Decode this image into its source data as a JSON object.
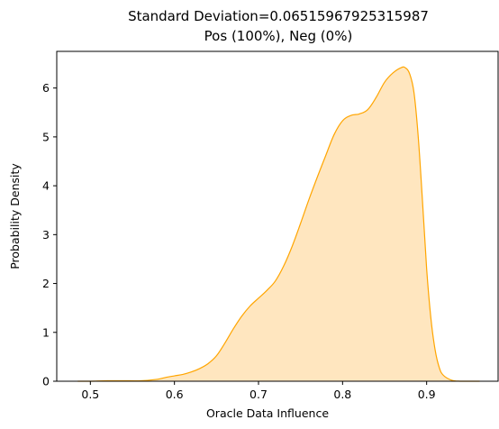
{
  "chart_data": {
    "type": "area",
    "title_line1": "Standard Deviation=0.06515967925315987",
    "title_line2": "Pos (100%), Neg (0%)",
    "xlabel": "Oracle Data Influence",
    "ylabel": "Probability Density",
    "xlim": [
      0.46,
      0.985
    ],
    "ylim": [
      0,
      6.75
    ],
    "xticks": [
      0.5,
      0.6,
      0.7,
      0.8,
      0.9
    ],
    "xtick_labels": [
      "0.5",
      "0.6",
      "0.7",
      "0.8",
      "0.9"
    ],
    "yticks": [
      0,
      1,
      2,
      3,
      4,
      5,
      6
    ],
    "ytick_labels": [
      "0",
      "1",
      "2",
      "3",
      "4",
      "5",
      "6"
    ],
    "grid": false,
    "line_color": "#ffa500",
    "fill_color": "#ffe6bf",
    "series": [
      {
        "x": [
          0.485,
          0.5,
          0.52,
          0.54,
          0.56,
          0.58,
          0.59,
          0.6,
          0.61,
          0.62,
          0.63,
          0.64,
          0.65,
          0.66,
          0.67,
          0.68,
          0.69,
          0.7,
          0.71,
          0.72,
          0.73,
          0.74,
          0.75,
          0.76,
          0.77,
          0.78,
          0.79,
          0.8,
          0.81,
          0.82,
          0.83,
          0.84,
          0.85,
          0.86,
          0.87,
          0.875,
          0.88,
          0.885,
          0.89,
          0.895,
          0.9,
          0.905,
          0.91,
          0.915,
          0.92,
          0.93,
          0.94,
          0.95,
          0.963
        ],
        "values": [
          0.0,
          0.0,
          0.01,
          0.01,
          0.01,
          0.04,
          0.08,
          0.11,
          0.14,
          0.19,
          0.26,
          0.36,
          0.52,
          0.78,
          1.07,
          1.33,
          1.54,
          1.7,
          1.86,
          2.05,
          2.36,
          2.76,
          3.23,
          3.72,
          4.18,
          4.62,
          5.05,
          5.33,
          5.44,
          5.47,
          5.56,
          5.81,
          6.12,
          6.31,
          6.42,
          6.41,
          6.28,
          5.9,
          5.0,
          3.7,
          2.3,
          1.3,
          0.65,
          0.28,
          0.12,
          0.02,
          0.0,
          0.0,
          0.0
        ]
      }
    ]
  }
}
